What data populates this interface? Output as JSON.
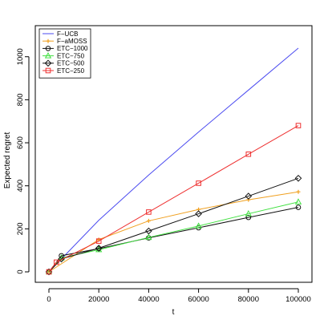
{
  "chart_data": {
    "type": "line",
    "title": "",
    "xlabel": "t",
    "ylabel": "Expected regret",
    "xlim": [
      0,
      100000
    ],
    "ylim": [
      0,
      1040
    ],
    "xticks": [
      0,
      20000,
      40000,
      60000,
      80000,
      100000
    ],
    "xtick_labels": [
      "0",
      "20000",
      "40000",
      "60000",
      "80000",
      "100000"
    ],
    "yticks": [
      0,
      200,
      400,
      600,
      800,
      1000
    ],
    "ytick_labels": [
      "0",
      "200",
      "400",
      "600",
      "800",
      "1000"
    ],
    "grid": false,
    "legend_position": "top-left",
    "series": [
      {
        "name": "F−UCB",
        "color": "#4b4bf0",
        "marker": "none",
        "x": [
          0,
          20000,
          40000,
          60000,
          80000,
          100000
        ],
        "values": [
          0,
          240,
          450,
          650,
          845,
          1040
        ]
      },
      {
        "name": "F−aMOSS",
        "color": "#f0a020",
        "marker": "plus",
        "x": [
          0,
          20000,
          40000,
          60000,
          80000,
          100000
        ],
        "values": [
          0,
          150,
          237,
          290,
          335,
          372
        ]
      },
      {
        "name": "ETC−1000",
        "color": "#111111",
        "marker": "circle",
        "x": [
          0,
          5000,
          20000,
          40000,
          60000,
          80000,
          100000
        ],
        "values": [
          0,
          75,
          108,
          158,
          205,
          253,
          300
        ]
      },
      {
        "name": "ETC−750",
        "color": "#40e040",
        "marker": "triangle",
        "x": [
          0,
          5000,
          20000,
          40000,
          60000,
          80000,
          100000
        ],
        "values": [
          0,
          65,
          103,
          160,
          213,
          270,
          325
        ]
      },
      {
        "name": "ETC−500",
        "color": "#111111",
        "marker": "diamond",
        "x": [
          0,
          5000,
          20000,
          40000,
          60000,
          80000,
          100000
        ],
        "values": [
          0,
          60,
          110,
          190,
          270,
          352,
          435
        ]
      },
      {
        "name": "ETC−250",
        "color": "#ee3030",
        "marker": "square",
        "x": [
          0,
          3000,
          20000,
          40000,
          60000,
          80000,
          100000
        ],
        "values": [
          0,
          45,
          143,
          278,
          412,
          547,
          680
        ]
      }
    ]
  }
}
